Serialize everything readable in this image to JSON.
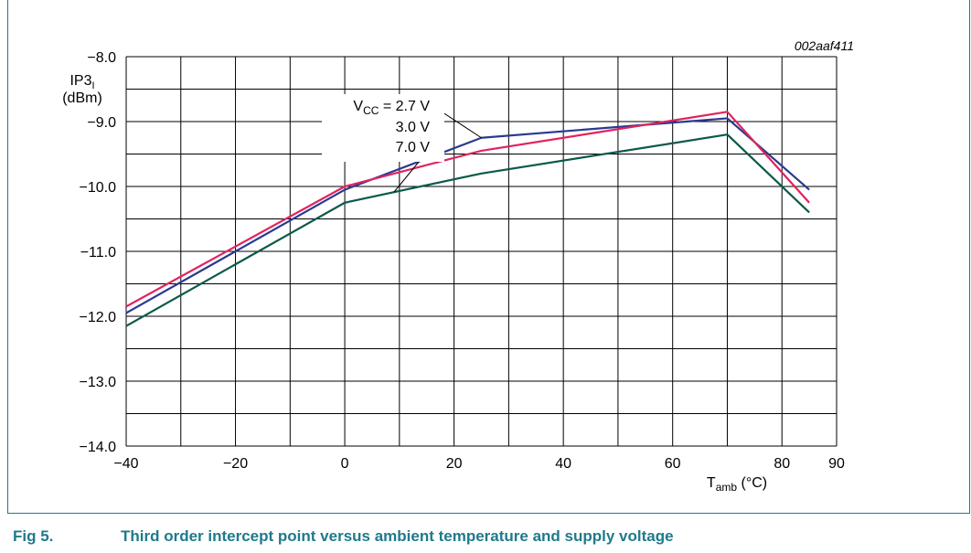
{
  "figure": {
    "id_label": "002aaf411",
    "caption_number": "Fig 5.",
    "caption_text": "Third order intercept point versus ambient temperature and supply voltage"
  },
  "colors": {
    "frame": "#1f7a8c",
    "caption": "#1f7a8c",
    "grid": "#000000"
  },
  "chart_data": {
    "type": "line",
    "title": "",
    "ylabel_main": "IP3",
    "ylabel_sub": "I",
    "ylabel_unit": "(dBm)",
    "xlabel_main": "T",
    "xlabel_sub": "amb",
    "xlabel_unit": "(°C)",
    "xlim": [
      -40,
      90
    ],
    "ylim": [
      -14.0,
      -8.0
    ],
    "x_ticks": [
      -40,
      -20,
      0,
      20,
      40,
      60,
      80,
      90
    ],
    "x_tick_labels": [
      "−40",
      "−20",
      "0",
      "20",
      "40",
      "60",
      "80",
      "90"
    ],
    "y_ticks": [
      -8,
      -9,
      -10,
      -11,
      -12,
      -13,
      -14
    ],
    "y_tick_labels": [
      "−8.0",
      "−9.0",
      "−10.0",
      "−11.0",
      "−12.0",
      "−13.0",
      "−14.0"
    ],
    "grid": true,
    "legend_prefix_main": "V",
    "legend_prefix_sub": "CC",
    "legend_prefix_eq": " = ",
    "series": [
      {
        "name": "2.7 V",
        "color": "#2a3a8f",
        "x": [
          -40,
          0,
          25,
          70,
          85
        ],
        "y": [
          -11.95,
          -10.05,
          -9.25,
          -8.95,
          -10.05
        ]
      },
      {
        "name": "3.0 V",
        "color": "#e0245e",
        "x": [
          -40,
          0,
          25,
          70,
          85
        ],
        "y": [
          -11.85,
          -10.0,
          -9.45,
          -8.85,
          -10.25
        ]
      },
      {
        "name": "7.0 V",
        "color": "#0b5a4a",
        "x": [
          -40,
          0,
          25,
          70,
          85
        ],
        "y": [
          -12.15,
          -10.25,
          -9.8,
          -9.2,
          -10.4
        ]
      }
    ]
  }
}
